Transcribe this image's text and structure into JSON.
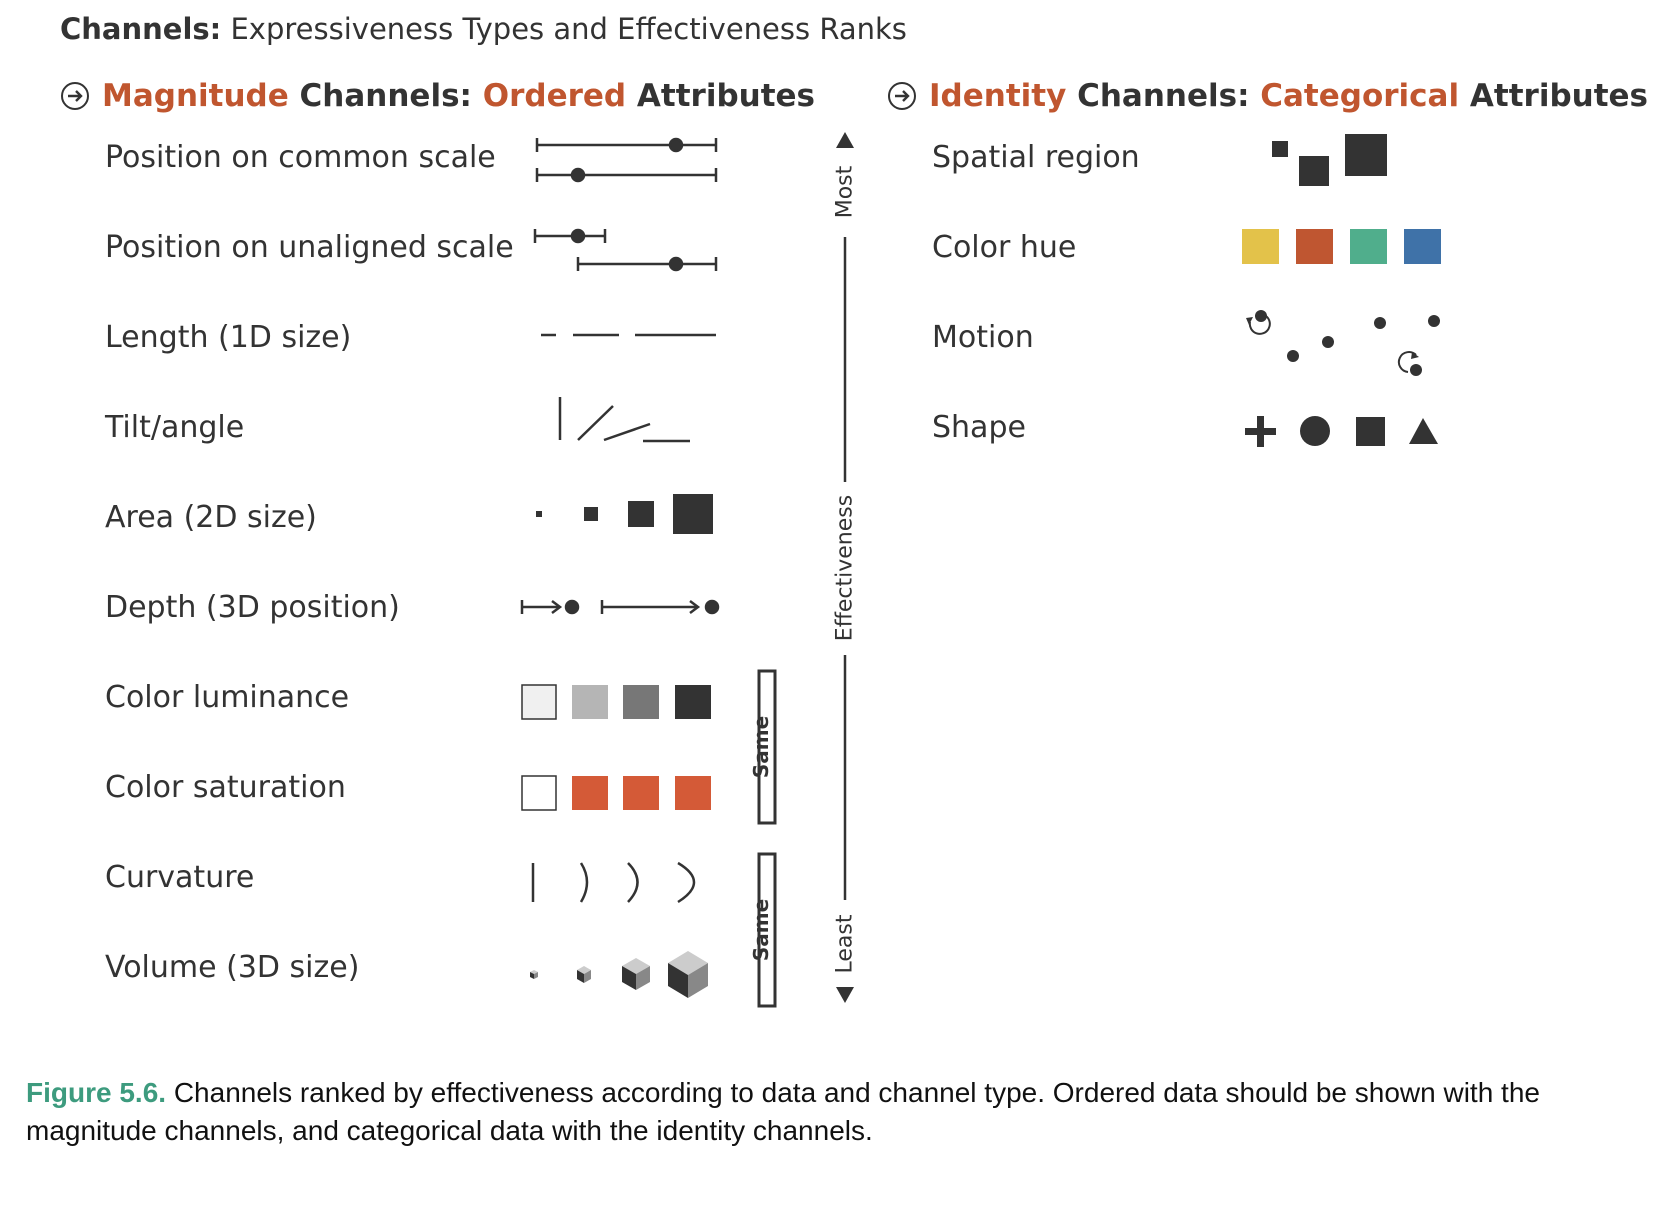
{
  "title": {
    "bold": "Channels:",
    "rest": " Expressiveness Types and Effectiveness Ranks"
  },
  "magnitude_section": {
    "word1": "Magnitude",
    "word2": " Channels: ",
    "word3": "Ordered",
    "word4": " Attributes",
    "channels": [
      "Position on common scale",
      "Position on unaligned scale",
      "Length (1D size)",
      "Tilt/angle",
      "Area (2D size)",
      "Depth (3D position)",
      "Color luminance",
      "Color saturation",
      "Curvature",
      "Volume (3D size)"
    ]
  },
  "identity_section": {
    "word1": "Identity",
    "word2": " Channels: ",
    "word3": "Categorical",
    "word4": " Attributes",
    "channels": [
      "Spatial region",
      "Color hue",
      "Motion",
      "Shape"
    ]
  },
  "effectiveness_axis": {
    "top": "Most",
    "middle": "Effectiveness",
    "bottom": "Least"
  },
  "same_labels": [
    "Same",
    "Same"
  ],
  "colors": {
    "accent": "#c0562f",
    "mark": "#333333",
    "hue_yellow": "#e3c24a",
    "hue_red": "#bf5631",
    "hue_green": "#50ae8c",
    "hue_blue": "#3f72a8",
    "luminance": [
      "#f0f0f0",
      "#b5b5b5",
      "#777777",
      "#333333"
    ],
    "saturation": [
      "#ffffff",
      "#d45a37",
      "#d45a37",
      "#d45a37"
    ],
    "caption_accent": "#3d9b7e"
  },
  "caption": {
    "figure": "Figure 5.6.",
    "text": " Channels ranked by effectiveness according to data and channel type. Ordered data should be shown with the magnitude channels, and categorical data with the identity channels."
  }
}
